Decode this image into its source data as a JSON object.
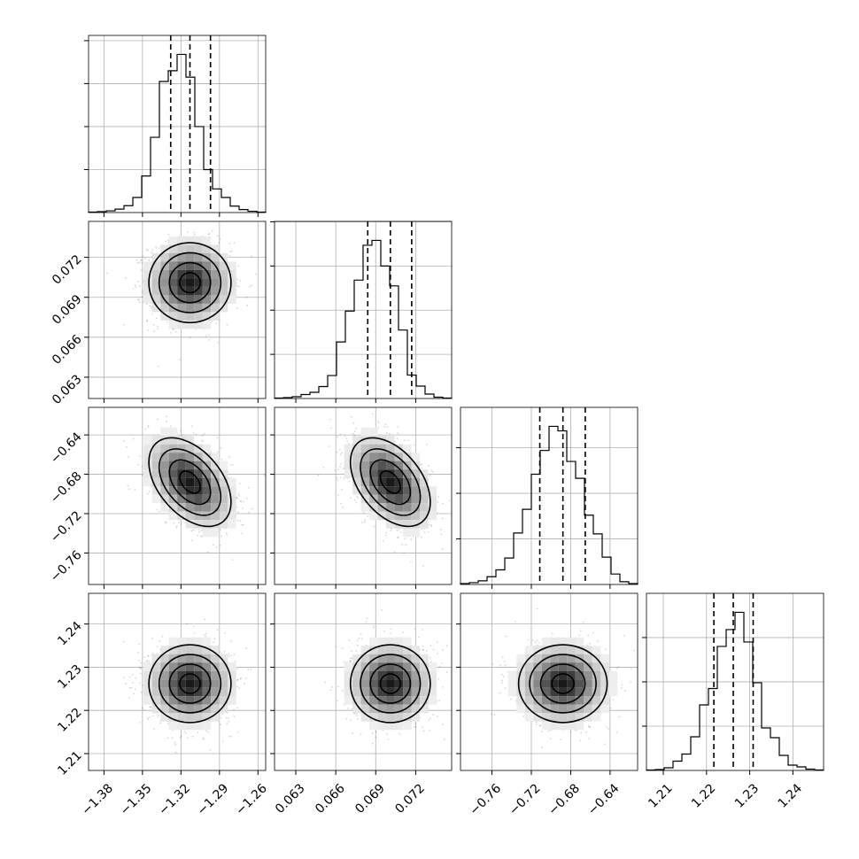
{
  "chart_data": {
    "type": "corner",
    "grid": true,
    "parameters": [
      {
        "ticks": [
          -1.38,
          -1.35,
          -1.32,
          -1.29,
          -1.26
        ],
        "tick_labels": [
          "−1.38",
          "−1.35",
          "−1.32",
          "−1.29",
          "−1.26"
        ],
        "range": [
          -1.392,
          -1.254
        ],
        "mean": -1.313,
        "sd": 0.016,
        "quantiles": [
          -1.328,
          -1.313,
          -1.297
        ],
        "hist": [
          1,
          2,
          4,
          8,
          16,
          35,
          85,
          175,
          305,
          330,
          368,
          315,
          200,
          100,
          55,
          35,
          15,
          7,
          3,
          1
        ]
      },
      {
        "ticks": [
          0.063,
          0.066,
          0.069,
          0.072
        ],
        "tick_labels": [
          "0.063",
          "0.066",
          "0.069",
          "0.072"
        ],
        "range": [
          0.0614,
          0.0747
        ],
        "mean": 0.0701,
        "sd": 0.0015,
        "quantiles": [
          0.0684,
          0.0701,
          0.0717
        ],
        "hist": [
          1,
          2,
          4,
          9,
          14,
          27,
          52,
          128,
          198,
          268,
          347,
          358,
          300,
          255,
          155,
          53,
          28,
          10,
          3,
          1
        ]
      },
      {
        "ticks": [
          -0.76,
          -0.72,
          -0.68,
          -0.64
        ],
        "tick_labels": [
          "−0.76",
          "−0.72",
          "−0.68",
          "−0.64"
        ],
        "range": [
          -0.792,
          -0.612
        ],
        "mean": -0.688,
        "sd": 0.0225,
        "quantiles": [
          -0.7114,
          -0.6879,
          -0.6652
        ],
        "hist": [
          2,
          4,
          8,
          17,
          32,
          58,
          113,
          165,
          242,
          294,
          347,
          337,
          270,
          233,
          152,
          111,
          60,
          23,
          6,
          2
        ]
      },
      {
        "ticks": [
          1.21,
          1.22,
          1.23,
          1.24
        ],
        "tick_labels": [
          "1.21",
          "1.22",
          "1.23",
          "1.24"
        ],
        "range": [
          1.2061,
          1.2471
        ],
        "mean": 1.2262,
        "sd": 0.0045,
        "quantiles": [
          1.2217,
          1.2262,
          1.2308
        ],
        "hist": [
          1,
          2,
          6,
          21,
          37,
          76,
          148,
          185,
          280,
          318,
          357,
          290,
          198,
          96,
          74,
          34,
          12,
          8,
          3,
          1
        ]
      }
    ],
    "correlations": [
      [
        1,
        0,
        -0.45,
        0
      ],
      [
        0,
        1,
        -0.45,
        0
      ],
      [
        -0.45,
        -0.45,
        1,
        0
      ],
      [
        0,
        0,
        0,
        1
      ]
    ],
    "contour_levels_sigma": [
      0.5,
      1.0,
      1.5,
      2.0
    ]
  }
}
